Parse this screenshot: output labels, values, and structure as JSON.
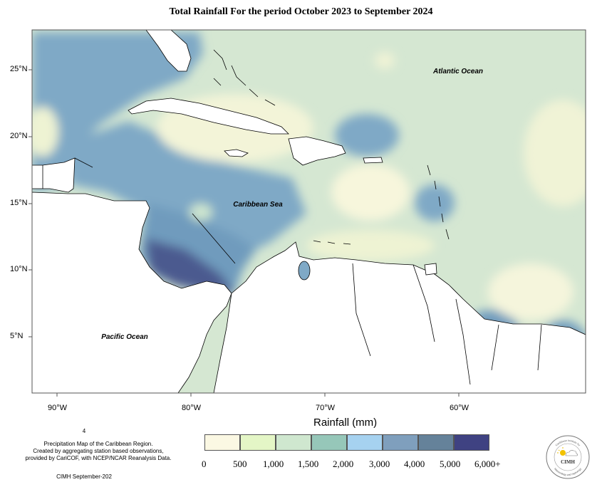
{
  "title": "Total Rainfall For the period October 2023 to September 2024",
  "map_labels": {
    "atlantic": "Atlantic Ocean",
    "caribbean": "Caribbean Sea",
    "pacific": "Pacific Ocean"
  },
  "latitude_ticks": [
    "25°N",
    "20°N",
    "15°N",
    "10°N",
    "5°N"
  ],
  "longitude_ticks": [
    "90°W",
    "80°W",
    "70°W",
    "60°W"
  ],
  "legend": {
    "title": "Rainfall (mm)",
    "labels": [
      "0",
      "500",
      "1,000",
      "1,500",
      "2,000",
      "3,000",
      "4,000",
      "5,000",
      "6,000+"
    ],
    "colors": [
      "#fbf8e3",
      "#e4f6c6",
      "#cfe7cf",
      "#96c7b9",
      "#a6d2f0",
      "#7f9fbd",
      "#65829a",
      "#3f4282"
    ]
  },
  "credits": {
    "page_number": "4",
    "line1": "Precipitation Map of the Caribbean Region.",
    "line2": "Created by aggregating station based observations,",
    "line3": "provided by CariCOF, with NCEP/NCAR Reanalysis Data.",
    "date": "CIMH September-202"
  },
  "logo": {
    "text": "CIMH",
    "arc_top": "Caribbean Institute for",
    "arc_bottom": "Meteorology and Hydrology"
  }
}
